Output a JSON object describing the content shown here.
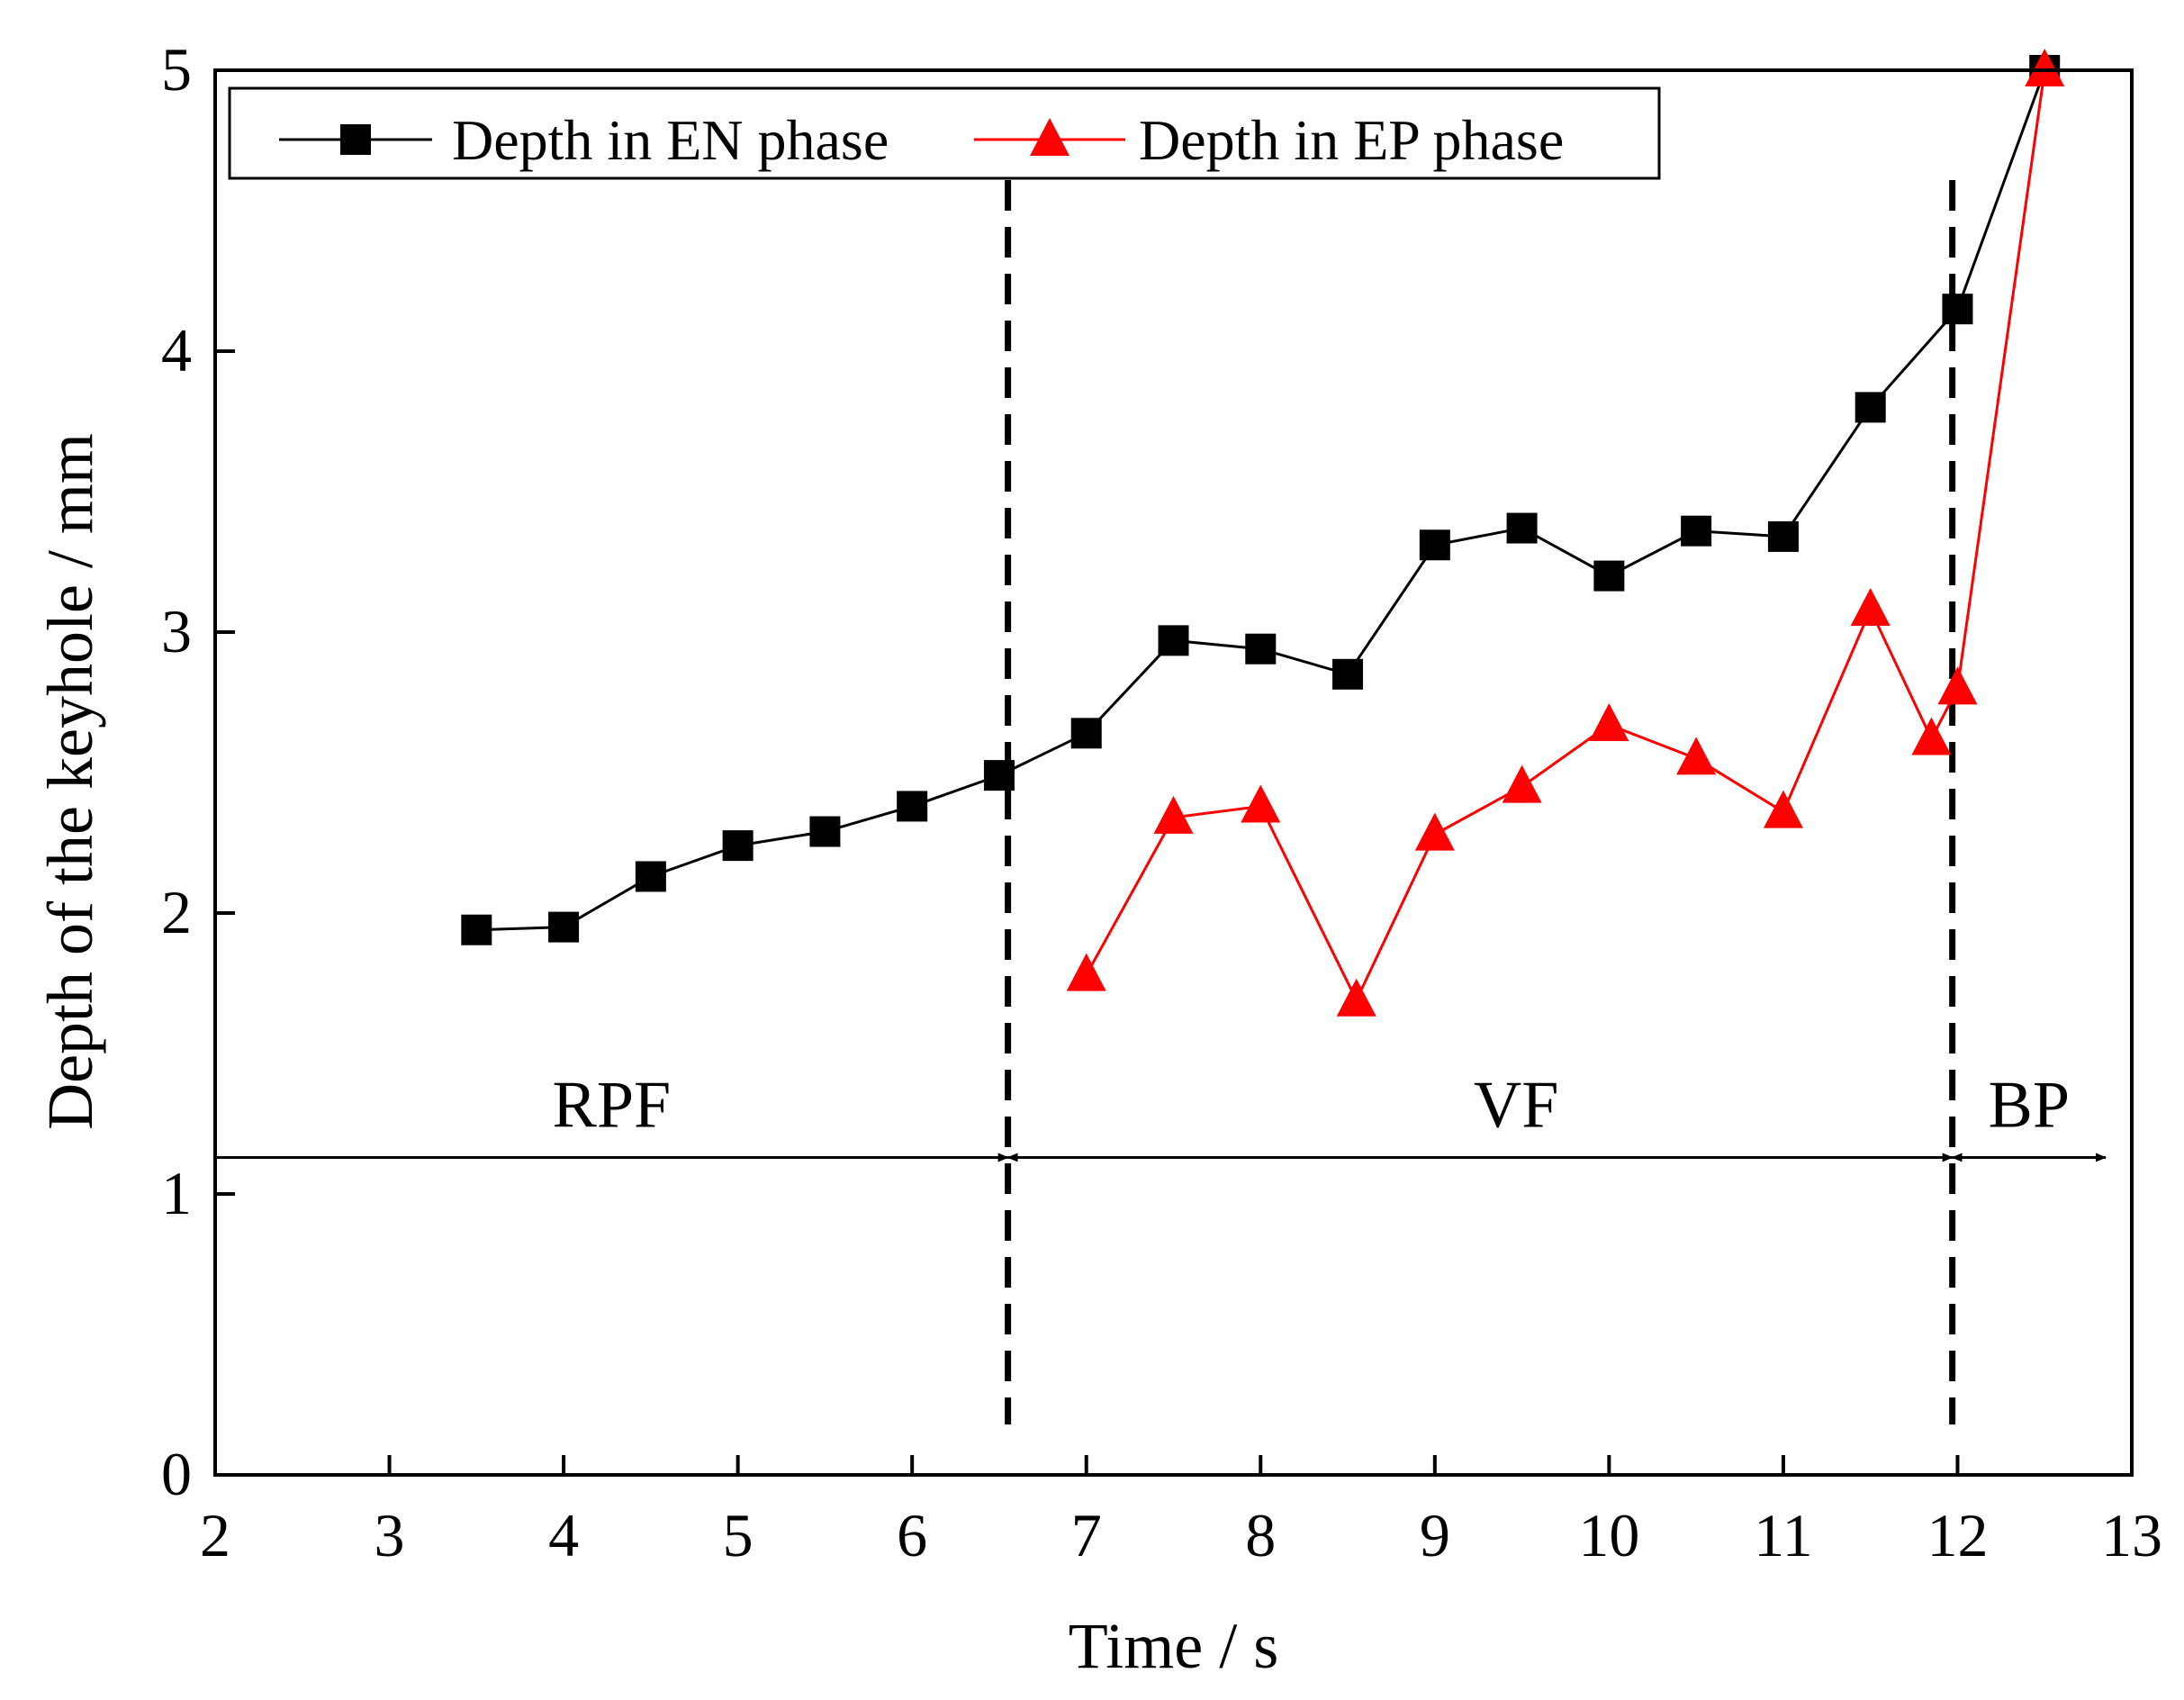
{
  "chart_data": {
    "type": "line",
    "title": "",
    "xlabel": "Time / s",
    "ylabel": "Depth of the keyhole / mm",
    "xlim": [
      2,
      13
    ],
    "ylim": [
      0,
      5
    ],
    "xticks": [
      "2",
      "3",
      "4",
      "5",
      "6",
      "7",
      "8",
      "9",
      "10",
      "11",
      "12",
      "13"
    ],
    "yticks": [
      "0",
      "1",
      "2",
      "3",
      "4",
      "5"
    ],
    "legend_position": "top-left",
    "series": [
      {
        "name": "Depth in EN phase",
        "color": "#000000",
        "marker": "square",
        "x": [
          3.5,
          4.0,
          4.5,
          5.0,
          5.5,
          6.0,
          6.5,
          7.0,
          7.5,
          8.0,
          8.5,
          9.0,
          9.5,
          10.0,
          10.5,
          11.0,
          11.5,
          12.0,
          12.5
        ],
        "y": [
          1.94,
          1.95,
          2.13,
          2.24,
          2.29,
          2.38,
          2.49,
          2.64,
          2.97,
          2.94,
          2.85,
          3.31,
          3.37,
          3.2,
          3.36,
          3.34,
          3.8,
          4.15,
          5.0
        ]
      },
      {
        "name": "Depth in EP phase",
        "color": "#ff0000",
        "marker": "triangle",
        "x": [
          7.0,
          7.5,
          8.0,
          8.55,
          9.0,
          9.5,
          10.0,
          10.5,
          11.0,
          11.5,
          11.85,
          12.0,
          12.5
        ],
        "y": [
          1.78,
          2.34,
          2.38,
          1.69,
          2.28,
          2.45,
          2.67,
          2.55,
          2.36,
          3.08,
          2.62,
          2.8,
          5.0
        ]
      }
    ],
    "phase_boundaries": [
      6.55,
      11.97
    ],
    "phase_arrow_y": 1.13,
    "phases": [
      {
        "label": "RPF",
        "x_start": 2.0,
        "x_end": 6.55
      },
      {
        "label": "VF",
        "x_start": 6.55,
        "x_end": 11.97
      },
      {
        "label": "BP",
        "x_start": 11.97,
        "x_end": 12.85
      }
    ]
  }
}
